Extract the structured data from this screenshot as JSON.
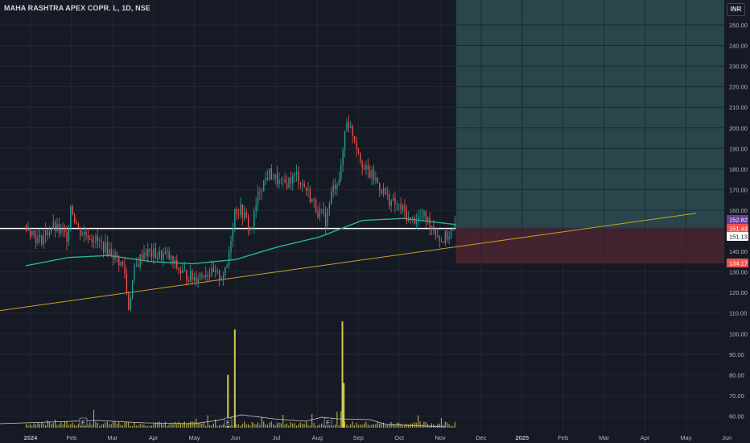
{
  "header": {
    "symbol_title": "MAHA RASHTRA APEX COPR. L, 1D, NSE",
    "currency": "INR"
  },
  "colors": {
    "background": "#161a25",
    "up_candle": "#26a69a",
    "down_candle": "#ef5350",
    "volume": "#d4c94b",
    "moving_average": "#26b88a",
    "trendline": "#c9a227",
    "horizontal_line": "#ffffff",
    "target_zone": "#2c4f52",
    "stop_zone": "#4a2530"
  },
  "chart_data": {
    "type": "candlestick",
    "y_axis": {
      "range": [
        55,
        257
      ],
      "ticks": [
        "250.00",
        "240.00",
        "230.00",
        "220.00",
        "210.00",
        "200.00",
        "190.00",
        "180.00",
        "170.00",
        "160.00",
        "150.00",
        "140.00",
        "130.00",
        "120.00",
        "110.00",
        "100.00",
        "90.00",
        "80.00",
        "70.00",
        "60.00"
      ]
    },
    "x_axis": {
      "ticks": [
        "2024",
        "Feb",
        "Mar",
        "Apr",
        "May",
        "Jun",
        "Jul",
        "Aug",
        "Sep",
        "Oct",
        "Nov",
        "Dec",
        "2025",
        "Feb",
        "Mar",
        "Apr",
        "May",
        "Jun"
      ]
    },
    "price_labels": [
      {
        "label": "152.82",
        "color": "#6a3d9a"
      },
      {
        "label": "151.43",
        "color": "#ef5350"
      },
      {
        "label": "151.13",
        "color": "#ffffff"
      },
      {
        "label": "134.17",
        "color": "#ef5350"
      }
    ],
    "horizontal_level": 151.13,
    "position_tool": {
      "entry": 151.43,
      "stop": 134.17,
      "target": 257
    },
    "trendline": {
      "start": {
        "date": "2024-01-01",
        "price": 112
      },
      "end": {
        "date": "2025-05-01",
        "price": 158.5
      }
    },
    "earnings_markers": [
      "E",
      "E",
      "E"
    ],
    "price_path": [
      [
        "2024-01-01",
        153
      ],
      [
        "2024-01-10",
        145
      ],
      [
        "2024-01-20",
        152
      ],
      [
        "2024-01-31",
        147
      ],
      [
        "2024-02-02",
        163
      ],
      [
        "2024-02-08",
        150
      ],
      [
        "2024-02-15",
        148
      ],
      [
        "2024-02-25",
        143
      ],
      [
        "2024-03-05",
        138
      ],
      [
        "2024-03-12",
        132
      ],
      [
        "2024-03-15",
        112
      ],
      [
        "2024-03-19",
        130
      ],
      [
        "2024-03-26",
        140
      ],
      [
        "2024-04-05",
        138
      ],
      [
        "2024-04-12",
        138
      ],
      [
        "2024-04-22",
        130
      ],
      [
        "2024-05-01",
        127
      ],
      [
        "2024-05-10",
        130
      ],
      [
        "2024-05-20",
        128
      ],
      [
        "2024-05-25",
        130
      ],
      [
        "2024-05-31",
        160
      ],
      [
        "2024-06-05",
        160
      ],
      [
        "2024-06-12",
        150
      ],
      [
        "2024-06-18",
        170
      ],
      [
        "2024-06-25",
        178
      ],
      [
        "2024-07-05",
        172
      ],
      [
        "2024-07-15",
        177
      ],
      [
        "2024-07-22",
        170
      ],
      [
        "2024-07-30",
        160
      ],
      [
        "2024-08-05",
        155
      ],
      [
        "2024-08-10",
        170
      ],
      [
        "2024-08-16",
        178
      ],
      [
        "2024-08-20",
        205
      ],
      [
        "2024-08-26",
        195
      ],
      [
        "2024-09-02",
        180
      ],
      [
        "2024-09-10",
        175
      ],
      [
        "2024-09-20",
        165
      ],
      [
        "2024-09-30",
        160
      ],
      [
        "2024-10-05",
        155
      ],
      [
        "2024-10-15",
        157
      ],
      [
        "2024-10-22",
        152
      ],
      [
        "2024-10-28",
        145
      ],
      [
        "2024-11-02",
        148
      ],
      [
        "2024-11-08",
        152
      ]
    ],
    "ma_path": [
      [
        "2024-01-01",
        133
      ],
      [
        "2024-02-01",
        137
      ],
      [
        "2024-03-01",
        138
      ],
      [
        "2024-04-01",
        135
      ],
      [
        "2024-05-01",
        134
      ],
      [
        "2024-06-01",
        136
      ],
      [
        "2024-07-01",
        142
      ],
      [
        "2024-08-01",
        147
      ],
      [
        "2024-09-01",
        155
      ],
      [
        "2024-10-01",
        156
      ],
      [
        "2024-11-08",
        153
      ]
    ],
    "volume_spikes": [
      {
        "date": "2024-05-31",
        "value": 102
      },
      {
        "date": "2024-08-17",
        "value": 106
      },
      {
        "date": "2024-05-26",
        "value": 80
      },
      {
        "date": "2024-08-18",
        "value": 76
      }
    ]
  }
}
